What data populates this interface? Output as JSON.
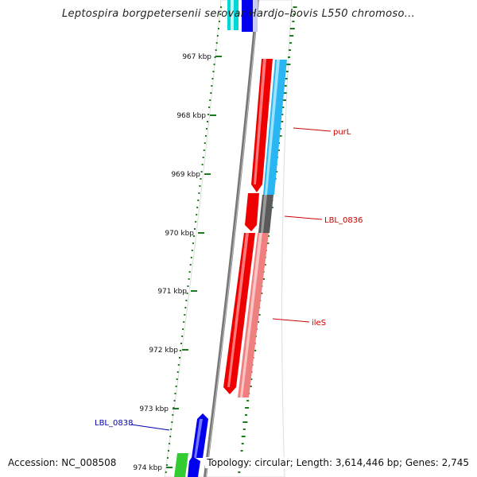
{
  "title": "Leptospira borgpetersenii serovar Hardjo–bovis L550 chromoso...",
  "footer": {
    "accession": "Accession: NC_008508",
    "summary": "Topology: circular; Length: 3,614,446 bp; Genes: 2,745"
  },
  "ticks": [
    "967 kbp",
    "968 kbp",
    "969 kbp",
    "970 kbp",
    "971 kbp",
    "972 kbp",
    "973 kbp",
    "974 kbp"
  ],
  "genes": [
    {
      "label": "purL",
      "color": "#cc0000"
    },
    {
      "label": "LBL_0836",
      "color": "#cc0000"
    },
    {
      "label": "ileS",
      "color": "#cc0000"
    },
    {
      "label": "LBL_0838",
      "color": "#0000aa"
    }
  ],
  "colors": {
    "forward": "#ee0000",
    "cds_light_blue": "#29b6f2",
    "cds_gray": "#666666",
    "cds_pink": "#f08080",
    "reverse_blue": "#0000ee",
    "green": "#33cc33",
    "cyan": "#00d0d0",
    "backbone": "#888888",
    "gc_dots": "#1e7a1e"
  }
}
